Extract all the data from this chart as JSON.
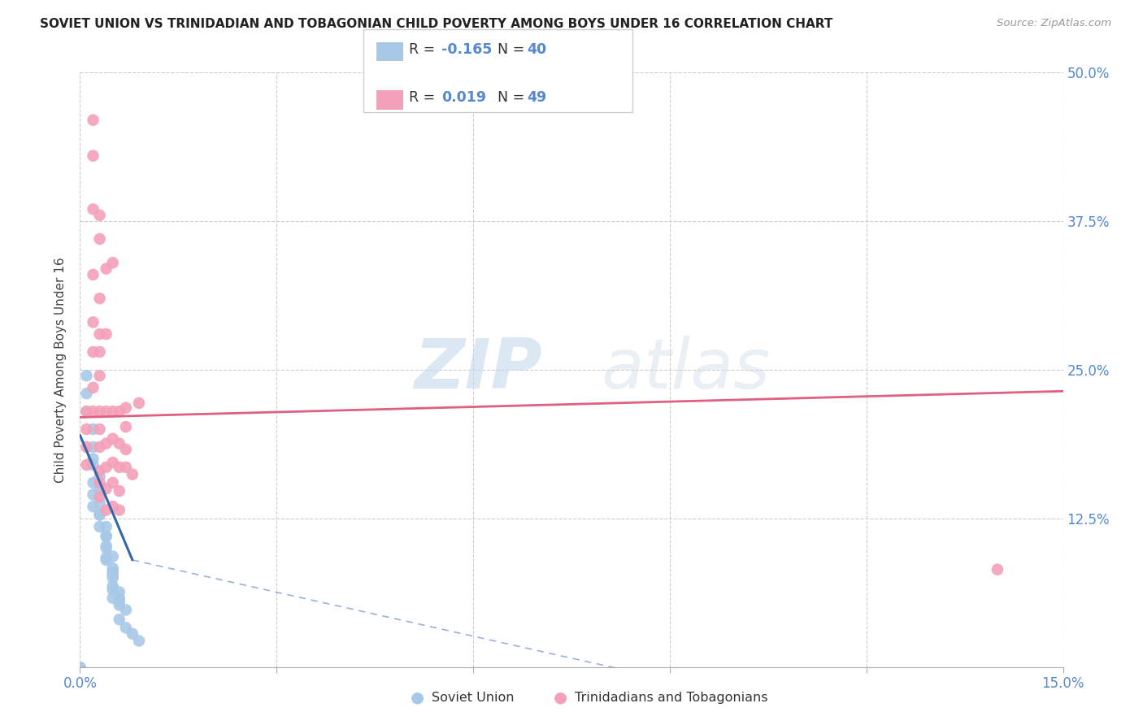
{
  "title": "SOVIET UNION VS TRINIDADIAN AND TOBAGONIAN CHILD POVERTY AMONG BOYS UNDER 16 CORRELATION CHART",
  "source": "Source: ZipAtlas.com",
  "ylabel": "Child Poverty Among Boys Under 16",
  "xlim": [
    0.0,
    0.15
  ],
  "ylim": [
    0.0,
    0.5
  ],
  "x_ticks": [
    0.0,
    0.03,
    0.06,
    0.09,
    0.12,
    0.15
  ],
  "x_tick_labels": [
    "0.0%",
    "",
    "",
    "",
    "",
    "15.0%"
  ],
  "y_ticks": [
    0.0,
    0.125,
    0.25,
    0.375,
    0.5
  ],
  "y_tick_labels": [
    "",
    "12.5%",
    "25.0%",
    "37.5%",
    "50.0%"
  ],
  "watermark_zip": "ZIP",
  "watermark_atlas": "atlas",
  "blue_color": "#a8c8e8",
  "pink_color": "#f4a0b8",
  "blue_line_color": "#3366aa",
  "pink_line_color": "#e06080",
  "blue_scatter": [
    [
      0.001,
      0.245
    ],
    [
      0.001,
      0.23
    ],
    [
      0.001,
      0.215
    ],
    [
      0.002,
      0.2
    ],
    [
      0.002,
      0.185
    ],
    [
      0.002,
      0.17
    ],
    [
      0.002,
      0.155
    ],
    [
      0.002,
      0.145
    ],
    [
      0.002,
      0.135
    ],
    [
      0.002,
      0.175
    ],
    [
      0.003,
      0.16
    ],
    [
      0.003,
      0.148
    ],
    [
      0.003,
      0.138
    ],
    [
      0.003,
      0.128
    ],
    [
      0.003,
      0.118
    ],
    [
      0.003,
      0.128
    ],
    [
      0.004,
      0.118
    ],
    [
      0.004,
      0.11
    ],
    [
      0.004,
      0.1
    ],
    [
      0.004,
      0.09
    ],
    [
      0.004,
      0.11
    ],
    [
      0.004,
      0.102
    ],
    [
      0.004,
      0.092
    ],
    [
      0.005,
      0.083
    ],
    [
      0.005,
      0.075
    ],
    [
      0.005,
      0.093
    ],
    [
      0.005,
      0.08
    ],
    [
      0.005,
      0.068
    ],
    [
      0.005,
      0.058
    ],
    [
      0.005,
      0.078
    ],
    [
      0.005,
      0.065
    ],
    [
      0.006,
      0.055
    ],
    [
      0.006,
      0.063
    ],
    [
      0.006,
      0.052
    ],
    [
      0.006,
      0.058
    ],
    [
      0.006,
      0.04
    ],
    [
      0.007,
      0.048
    ],
    [
      0.007,
      0.033
    ],
    [
      0.008,
      0.028
    ],
    [
      0.009,
      0.022
    ]
  ],
  "pink_scatter": [
    [
      0.001,
      0.215
    ],
    [
      0.001,
      0.2
    ],
    [
      0.001,
      0.185
    ],
    [
      0.001,
      0.17
    ],
    [
      0.002,
      0.46
    ],
    [
      0.002,
      0.43
    ],
    [
      0.002,
      0.385
    ],
    [
      0.002,
      0.33
    ],
    [
      0.002,
      0.29
    ],
    [
      0.002,
      0.265
    ],
    [
      0.002,
      0.235
    ],
    [
      0.002,
      0.215
    ],
    [
      0.003,
      0.38
    ],
    [
      0.003,
      0.36
    ],
    [
      0.003,
      0.31
    ],
    [
      0.003,
      0.28
    ],
    [
      0.003,
      0.265
    ],
    [
      0.003,
      0.245
    ],
    [
      0.003,
      0.215
    ],
    [
      0.003,
      0.2
    ],
    [
      0.003,
      0.185
    ],
    [
      0.003,
      0.165
    ],
    [
      0.003,
      0.155
    ],
    [
      0.003,
      0.143
    ],
    [
      0.004,
      0.335
    ],
    [
      0.004,
      0.28
    ],
    [
      0.004,
      0.215
    ],
    [
      0.004,
      0.188
    ],
    [
      0.004,
      0.168
    ],
    [
      0.004,
      0.15
    ],
    [
      0.004,
      0.132
    ],
    [
      0.005,
      0.34
    ],
    [
      0.005,
      0.215
    ],
    [
      0.005,
      0.192
    ],
    [
      0.005,
      0.172
    ],
    [
      0.005,
      0.155
    ],
    [
      0.005,
      0.135
    ],
    [
      0.006,
      0.215
    ],
    [
      0.006,
      0.188
    ],
    [
      0.006,
      0.168
    ],
    [
      0.006,
      0.148
    ],
    [
      0.006,
      0.132
    ],
    [
      0.007,
      0.218
    ],
    [
      0.007,
      0.202
    ],
    [
      0.007,
      0.183
    ],
    [
      0.007,
      0.168
    ],
    [
      0.008,
      0.162
    ],
    [
      0.009,
      0.222
    ],
    [
      0.14,
      0.082
    ]
  ],
  "blue_line": [
    [
      0.0,
      0.195
    ],
    [
      0.008,
      0.09
    ]
  ],
  "blue_line_dashed": [
    [
      0.008,
      0.09
    ],
    [
      0.15,
      -0.085
    ]
  ],
  "pink_line": [
    [
      0.0,
      0.21
    ],
    [
      0.15,
      0.232
    ]
  ]
}
